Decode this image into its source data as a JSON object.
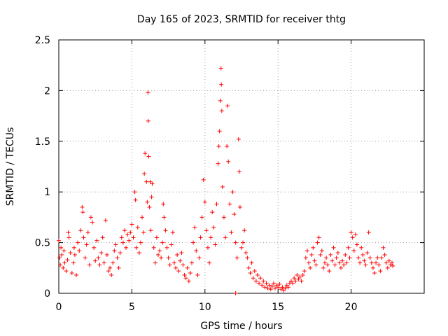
{
  "chart_data": {
    "type": "scatter",
    "title": "Day 165 of 2023, SRMTID for receiver thtg",
    "xlabel": "GPS time / hours",
    "ylabel": "SRMTID / TECUs",
    "xlim": [
      0,
      25
    ],
    "ylim": [
      0,
      2.5
    ],
    "x_ticks": [
      0,
      5,
      10,
      15,
      20
    ],
    "x_tick_labels": [
      "0",
      "5",
      "10",
      "15",
      "20"
    ],
    "y_ticks": [
      0,
      0.5,
      1,
      1.5,
      2,
      2.5
    ],
    "y_tick_labels": [
      "0",
      "0.5",
      "1",
      "1.5",
      "2",
      "2.5"
    ],
    "grid": true,
    "marker": "+",
    "color": "#ff0000",
    "points": [
      [
        0.0,
        0.52
      ],
      [
        0.05,
        0.35
      ],
      [
        0.1,
        0.28
      ],
      [
        0.15,
        0.45
      ],
      [
        0.2,
        0.38
      ],
      [
        0.3,
        0.25
      ],
      [
        0.35,
        0.42
      ],
      [
        0.4,
        0.3
      ],
      [
        0.5,
        0.22
      ],
      [
        0.6,
        0.33
      ],
      [
        0.65,
        0.6
      ],
      [
        0.7,
        0.55
      ],
      [
        0.8,
        0.4
      ],
      [
        0.9,
        0.2
      ],
      [
        1.0,
        0.3
      ],
      [
        1.05,
        0.45
      ],
      [
        1.1,
        0.38
      ],
      [
        1.2,
        0.18
      ],
      [
        1.3,
        0.5
      ],
      [
        1.4,
        0.42
      ],
      [
        1.5,
        0.62
      ],
      [
        1.6,
        0.85
      ],
      [
        1.65,
        0.8
      ],
      [
        1.7,
        0.55
      ],
      [
        1.8,
        0.35
      ],
      [
        1.9,
        0.48
      ],
      [
        2.0,
        0.6
      ],
      [
        2.1,
        0.28
      ],
      [
        2.2,
        0.75
      ],
      [
        2.3,
        0.7
      ],
      [
        2.4,
        0.45
      ],
      [
        2.5,
        0.32
      ],
      [
        2.6,
        0.52
      ],
      [
        2.7,
        0.35
      ],
      [
        2.8,
        0.28
      ],
      [
        2.9,
        0.4
      ],
      [
        3.0,
        0.55
      ],
      [
        3.1,
        0.3
      ],
      [
        3.2,
        0.72
      ],
      [
        3.3,
        0.38
      ],
      [
        3.4,
        0.22
      ],
      [
        3.5,
        0.25
      ],
      [
        3.6,
        0.18
      ],
      [
        3.7,
        0.3
      ],
      [
        3.8,
        0.42
      ],
      [
        3.9,
        0.48
      ],
      [
        4.0,
        0.35
      ],
      [
        4.1,
        0.25
      ],
      [
        4.2,
        0.4
      ],
      [
        4.3,
        0.55
      ],
      [
        4.4,
        0.5
      ],
      [
        4.5,
        0.62
      ],
      [
        4.6,
        0.45
      ],
      [
        4.7,
        0.58
      ],
      [
        4.8,
        0.52
      ],
      [
        4.9,
        0.6
      ],
      [
        5.0,
        0.68
      ],
      [
        5.1,
        0.55
      ],
      [
        5.2,
        1.0
      ],
      [
        5.25,
        0.92
      ],
      [
        5.3,
        0.45
      ],
      [
        5.4,
        0.65
      ],
      [
        5.5,
        0.4
      ],
      [
        5.6,
        0.5
      ],
      [
        5.7,
        0.75
      ],
      [
        5.8,
        0.6
      ],
      [
        5.85,
        1.18
      ],
      [
        5.9,
        1.38
      ],
      [
        6.0,
        1.1
      ],
      [
        6.05,
        0.9
      ],
      [
        6.1,
        1.98
      ],
      [
        6.12,
        1.7
      ],
      [
        6.15,
        1.35
      ],
      [
        6.2,
        0.85
      ],
      [
        6.25,
        1.1
      ],
      [
        6.3,
        0.62
      ],
      [
        6.35,
        0.95
      ],
      [
        6.4,
        1.08
      ],
      [
        6.5,
        0.45
      ],
      [
        6.6,
        0.3
      ],
      [
        6.7,
        0.55
      ],
      [
        6.8,
        0.38
      ],
      [
        6.9,
        0.42
      ],
      [
        7.0,
        0.35
      ],
      [
        7.1,
        0.5
      ],
      [
        7.15,
        0.88
      ],
      [
        7.2,
        0.75
      ],
      [
        7.3,
        0.62
      ],
      [
        7.4,
        0.45
      ],
      [
        7.5,
        0.35
      ],
      [
        7.6,
        0.28
      ],
      [
        7.7,
        0.48
      ],
      [
        7.8,
        0.6
      ],
      [
        7.9,
        0.3
      ],
      [
        8.0,
        0.25
      ],
      [
        8.1,
        0.38
      ],
      [
        8.2,
        0.22
      ],
      [
        8.3,
        0.32
      ],
      [
        8.4,
        0.4
      ],
      [
        8.5,
        0.28
      ],
      [
        8.6,
        0.18
      ],
      [
        8.7,
        0.15
      ],
      [
        8.8,
        0.25
      ],
      [
        8.9,
        0.12
      ],
      [
        9.0,
        0.2
      ],
      [
        9.1,
        0.3
      ],
      [
        9.2,
        0.5
      ],
      [
        9.3,
        0.65
      ],
      [
        9.4,
        0.42
      ],
      [
        9.5,
        0.18
      ],
      [
        9.6,
        0.35
      ],
      [
        9.7,
        0.55
      ],
      [
        9.8,
        0.75
      ],
      [
        9.9,
        1.12
      ],
      [
        10.0,
        0.9
      ],
      [
        10.1,
        0.62
      ],
      [
        10.2,
        0.45
      ],
      [
        10.3,
        0.3
      ],
      [
        10.4,
        0.55
      ],
      [
        10.5,
        0.8
      ],
      [
        10.6,
        0.65
      ],
      [
        10.7,
        0.48
      ],
      [
        10.8,
        0.88
      ],
      [
        10.9,
        1.28
      ],
      [
        10.95,
        1.45
      ],
      [
        11.0,
        1.6
      ],
      [
        11.05,
        1.9
      ],
      [
        11.1,
        2.22
      ],
      [
        11.12,
        2.06
      ],
      [
        11.15,
        1.8
      ],
      [
        11.2,
        1.05
      ],
      [
        11.3,
        0.75
      ],
      [
        11.4,
        0.55
      ],
      [
        11.5,
        1.45
      ],
      [
        11.55,
        1.85
      ],
      [
        11.6,
        1.3
      ],
      [
        11.7,
        0.88
      ],
      [
        11.8,
        0.6
      ],
      [
        11.9,
        1.0
      ],
      [
        12.0,
        0.78
      ],
      [
        12.1,
        0.5
      ],
      [
        12.2,
        0.35
      ],
      [
        12.3,
        1.52
      ],
      [
        12.35,
        1.2
      ],
      [
        12.4,
        0.85
      ],
      [
        12.5,
        0.45
      ],
      [
        12.6,
        0.5
      ],
      [
        12.7,
        0.62
      ],
      [
        12.8,
        0.4
      ],
      [
        12.9,
        0.35
      ],
      [
        13.0,
        0.25
      ],
      [
        13.1,
        0.2
      ],
      [
        13.2,
        0.3
      ],
      [
        13.3,
        0.15
      ],
      [
        13.4,
        0.22
      ],
      [
        13.5,
        0.12
      ],
      [
        13.6,
        0.18
      ],
      [
        13.7,
        0.1
      ],
      [
        13.8,
        0.15
      ],
      [
        13.9,
        0.08
      ],
      [
        14.0,
        0.12
      ],
      [
        14.1,
        0.06
      ],
      [
        14.2,
        0.1
      ],
      [
        14.3,
        0.05
      ],
      [
        14.4,
        0.08
      ],
      [
        14.5,
        0.04
      ],
      [
        14.6,
        0.07
      ],
      [
        14.7,
        0.1
      ],
      [
        14.8,
        0.05
      ],
      [
        14.9,
        0.08
      ],
      [
        15.0,
        0.06
      ],
      [
        15.1,
        0.09
      ],
      [
        15.2,
        0.04
      ],
      [
        15.3,
        0.06
      ],
      [
        15.4,
        0.03
      ],
      [
        15.5,
        0.05
      ],
      [
        15.6,
        0.08
      ],
      [
        15.7,
        0.06
      ],
      [
        15.8,
        0.1
      ],
      [
        15.9,
        0.12
      ],
      [
        16.0,
        0.1
      ],
      [
        16.1,
        0.15
      ],
      [
        16.2,
        0.12
      ],
      [
        16.3,
        0.18
      ],
      [
        16.4,
        0.14
      ],
      [
        16.5,
        0.16
      ],
      [
        16.6,
        0.12
      ],
      [
        16.7,
        0.18
      ],
      [
        16.8,
        0.22
      ],
      [
        16.9,
        0.35
      ],
      [
        17.0,
        0.42
      ],
      [
        17.1,
        0.3
      ],
      [
        17.2,
        0.25
      ],
      [
        17.3,
        0.38
      ],
      [
        17.4,
        0.45
      ],
      [
        17.5,
        0.32
      ],
      [
        17.6,
        0.28
      ],
      [
        17.7,
        0.5
      ],
      [
        17.8,
        0.55
      ],
      [
        17.9,
        0.38
      ],
      [
        18.0,
        0.42
      ],
      [
        18.1,
        0.25
      ],
      [
        18.2,
        0.3
      ],
      [
        18.3,
        0.35
      ],
      [
        18.4,
        0.28
      ],
      [
        18.5,
        0.22
      ],
      [
        18.6,
        0.38
      ],
      [
        18.7,
        0.32
      ],
      [
        18.8,
        0.45
      ],
      [
        18.9,
        0.28
      ],
      [
        19.0,
        0.35
      ],
      [
        19.1,
        0.4
      ],
      [
        19.2,
        0.3
      ],
      [
        19.3,
        0.25
      ],
      [
        19.4,
        0.32
      ],
      [
        19.5,
        0.28
      ],
      [
        19.6,
        0.38
      ],
      [
        19.7,
        0.3
      ],
      [
        19.8,
        0.45
      ],
      [
        19.9,
        0.35
      ],
      [
        20.0,
        0.6
      ],
      [
        20.1,
        0.55
      ],
      [
        20.2,
        0.42
      ],
      [
        20.3,
        0.58
      ],
      [
        20.4,
        0.48
      ],
      [
        20.5,
        0.35
      ],
      [
        20.6,
        0.3
      ],
      [
        20.7,
        0.45
      ],
      [
        20.8,
        0.38
      ],
      [
        20.9,
        0.32
      ],
      [
        21.0,
        0.28
      ],
      [
        21.1,
        0.4
      ],
      [
        21.2,
        0.6
      ],
      [
        21.3,
        0.35
      ],
      [
        21.4,
        0.3
      ],
      [
        21.5,
        0.25
      ],
      [
        21.6,
        0.2
      ],
      [
        21.7,
        0.3
      ],
      [
        21.8,
        0.35
      ],
      [
        21.9,
        0.28
      ],
      [
        22.0,
        0.22
      ],
      [
        22.1,
        0.35
      ],
      [
        22.2,
        0.45
      ],
      [
        22.3,
        0.38
      ],
      [
        22.4,
        0.3
      ],
      [
        22.5,
        0.25
      ],
      [
        22.6,
        0.32
      ],
      [
        22.7,
        0.28
      ],
      [
        22.8,
        0.3
      ],
      [
        22.85,
        0.27
      ],
      [
        12.1,
        0.0
      ]
    ]
  }
}
